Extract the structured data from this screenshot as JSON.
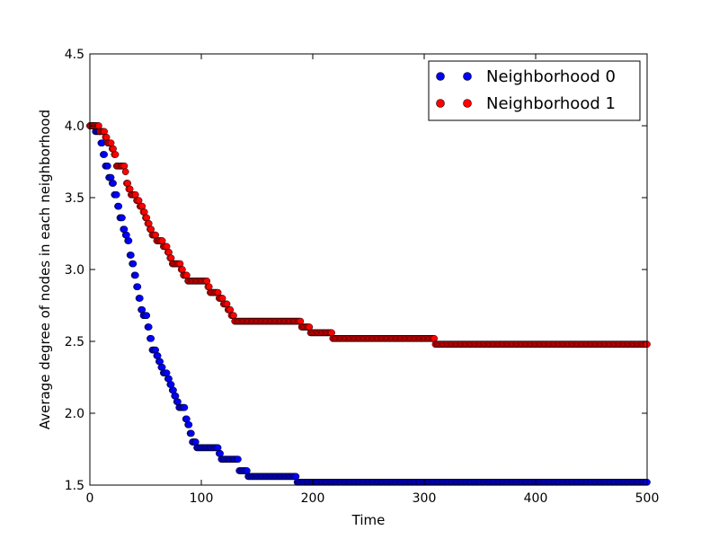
{
  "chart_data": {
    "type": "scatter",
    "title": "",
    "xlabel": "Time",
    "ylabel": "Average degree of nodes in each neighborhood",
    "xlim": [
      0,
      500
    ],
    "ylim": [
      1.5,
      4.5
    ],
    "xticks": [
      0,
      100,
      200,
      300,
      400,
      500
    ],
    "yticks": [
      1.5,
      2.0,
      2.5,
      3.0,
      3.5,
      4.0,
      4.5
    ],
    "xtick_labels": [
      "0",
      "100",
      "200",
      "300",
      "400",
      "500"
    ],
    "ytick_labels": [
      "1.5",
      "2.0",
      "2.5",
      "3.0",
      "3.5",
      "4.0",
      "4.5"
    ],
    "grid": false,
    "legend": "top-right",
    "series": [
      {
        "name": "Neighborhood 0",
        "color": "#0000ff",
        "steps": [
          [
            0,
            4.0
          ],
          [
            5,
            3.96
          ],
          [
            10,
            3.88
          ],
          [
            12,
            3.8
          ],
          [
            14,
            3.72
          ],
          [
            17,
            3.64
          ],
          [
            20,
            3.6
          ],
          [
            22,
            3.52
          ],
          [
            25,
            3.44
          ],
          [
            27,
            3.36
          ],
          [
            30,
            3.28
          ],
          [
            32,
            3.24
          ],
          [
            34,
            3.2
          ],
          [
            36,
            3.1
          ],
          [
            38,
            3.04
          ],
          [
            40,
            2.96
          ],
          [
            42,
            2.88
          ],
          [
            44,
            2.8
          ],
          [
            46,
            2.72
          ],
          [
            48,
            2.68
          ],
          [
            52,
            2.6
          ],
          [
            54,
            2.52
          ],
          [
            56,
            2.44
          ],
          [
            60,
            2.4
          ],
          [
            62,
            2.36
          ],
          [
            64,
            2.32
          ],
          [
            66,
            2.28
          ],
          [
            70,
            2.24
          ],
          [
            72,
            2.2
          ],
          [
            74,
            2.16
          ],
          [
            76,
            2.12
          ],
          [
            78,
            2.08
          ],
          [
            80,
            2.04
          ],
          [
            86,
            1.96
          ],
          [
            88,
            1.92
          ],
          [
            90,
            1.86
          ],
          [
            92,
            1.8
          ],
          [
            96,
            1.76
          ],
          [
            116,
            1.72
          ],
          [
            118,
            1.68
          ],
          [
            134,
            1.6
          ],
          [
            142,
            1.56
          ],
          [
            186,
            1.52
          ],
          [
            500,
            1.52
          ]
        ]
      },
      {
        "name": "Neighborhood 1",
        "color": "#ff0000",
        "steps": [
          [
            0,
            4.0
          ],
          [
            9,
            3.96
          ],
          [
            14,
            3.92
          ],
          [
            16,
            3.88
          ],
          [
            20,
            3.84
          ],
          [
            22,
            3.8
          ],
          [
            24,
            3.72
          ],
          [
            32,
            3.68
          ],
          [
            33,
            3.6
          ],
          [
            35,
            3.56
          ],
          [
            37,
            3.52
          ],
          [
            42,
            3.48
          ],
          [
            45,
            3.44
          ],
          [
            48,
            3.4
          ],
          [
            50,
            3.36
          ],
          [
            52,
            3.32
          ],
          [
            54,
            3.28
          ],
          [
            56,
            3.24
          ],
          [
            60,
            3.2
          ],
          [
            66,
            3.16
          ],
          [
            70,
            3.12
          ],
          [
            72,
            3.08
          ],
          [
            74,
            3.04
          ],
          [
            82,
            3.0
          ],
          [
            84,
            2.96
          ],
          [
            88,
            2.92
          ],
          [
            106,
            2.88
          ],
          [
            108,
            2.84
          ],
          [
            116,
            2.8
          ],
          [
            120,
            2.76
          ],
          [
            124,
            2.72
          ],
          [
            127,
            2.68
          ],
          [
            130,
            2.64
          ],
          [
            190,
            2.6
          ],
          [
            198,
            2.56
          ],
          [
            218,
            2.52
          ],
          [
            310,
            2.48
          ],
          [
            500,
            2.48
          ]
        ]
      }
    ]
  }
}
